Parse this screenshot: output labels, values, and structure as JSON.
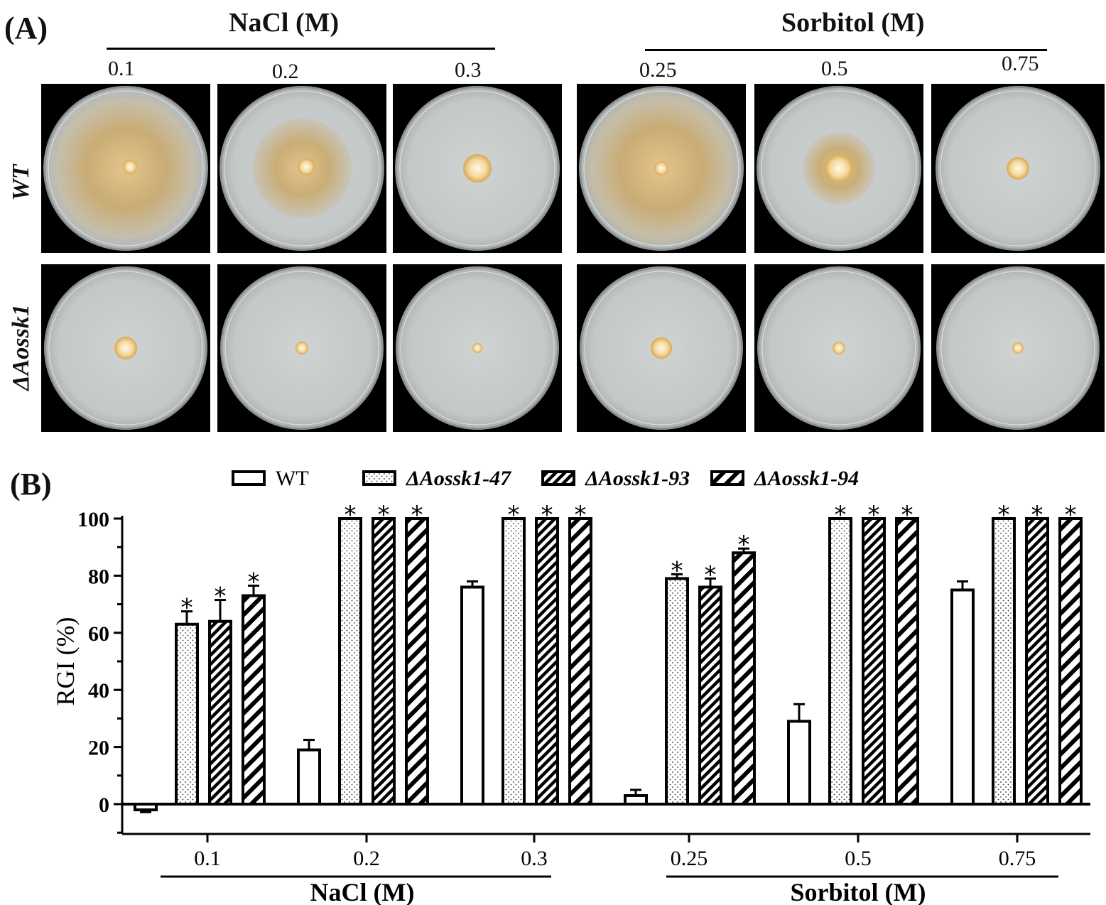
{
  "panel_a": {
    "label": "(A)",
    "nacl_title": "NaCl  (M)",
    "sorbitol_title": "Sorbitol (M)",
    "nacl_concentrations": [
      "0.1",
      "0.2",
      "0.3"
    ],
    "sorbitol_concentrations": [
      "0.25",
      "0.5",
      "0.75"
    ],
    "row_labels": [
      "WT",
      "ΔAossk1"
    ],
    "colors": {
      "wt_mycelium": "#c9a25a",
      "agar": "#c5c9c9",
      "background": "#000000"
    }
  },
  "panel_b": {
    "label": "(B)"
  },
  "chart_data": {
    "type": "bar",
    "ylabel": "RGI (%)",
    "ylim": [
      -10,
      100
    ],
    "yticks": [
      0,
      20,
      40,
      60,
      80,
      100
    ],
    "categories": [
      "0.1",
      "0.2",
      "0.3",
      "0.25",
      "0.5",
      "0.75"
    ],
    "groups": [
      {
        "name": "NaCl  (M)",
        "categories": [
          "0.1",
          "0.2",
          "0.3"
        ]
      },
      {
        "name": "Sorbitol (M)",
        "categories": [
          "0.25",
          "0.5",
          "0.75"
        ]
      }
    ],
    "series": [
      {
        "name": "WT",
        "pattern": "empty",
        "values": [
          -2,
          19,
          76,
          3,
          29,
          75
        ],
        "errors": [
          0.8,
          3.5,
          2,
          2,
          6,
          3
        ],
        "stars": [
          false,
          false,
          false,
          false,
          false,
          false
        ]
      },
      {
        "name": "ΔAossk1-47",
        "pattern": "dots",
        "values": [
          63,
          100,
          100,
          79,
          100,
          100
        ],
        "errors": [
          4.5,
          0,
          0,
          1.5,
          0,
          0
        ],
        "stars": [
          true,
          true,
          true,
          true,
          true,
          true
        ]
      },
      {
        "name": "ΔAossk1-93",
        "pattern": "dense-stripes",
        "values": [
          64,
          100,
          100,
          76,
          100,
          100
        ],
        "errors": [
          7.5,
          0,
          0,
          3,
          0,
          0
        ],
        "stars": [
          true,
          true,
          true,
          true,
          true,
          true
        ]
      },
      {
        "name": "ΔAossk1-94",
        "pattern": "wide-stripes",
        "values": [
          73,
          100,
          100,
          88,
          100,
          100
        ],
        "errors": [
          3.5,
          0,
          0,
          1.5,
          0,
          0
        ],
        "stars": [
          true,
          true,
          true,
          true,
          true,
          true
        ]
      }
    ],
    "legend_position": "top",
    "significance_marker": "*"
  }
}
